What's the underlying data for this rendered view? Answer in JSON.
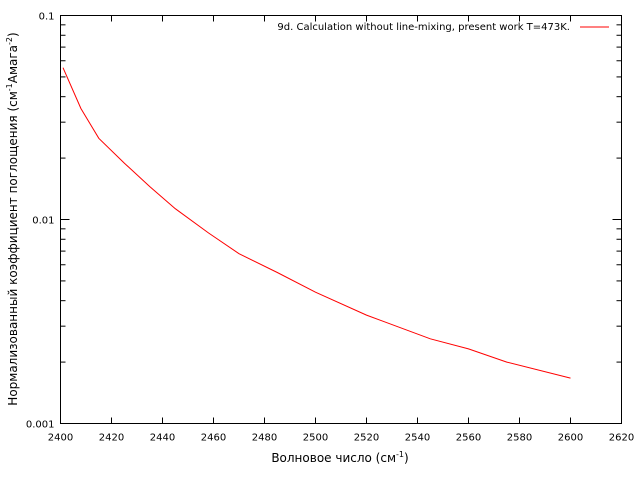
{
  "chart_data": {
    "type": "line",
    "title": "",
    "xlabel": "Волновое число (см",
    "xlabel_sup": "-1",
    "xlabel_tail": ")",
    "ylabel": "Нормализованный коэффициент поглощения (см",
    "ylabel_sup1": "-1",
    "ylabel_mid": "Амага",
    "ylabel_sup2": "-2",
    "ylabel_tail": ")",
    "xlim": [
      2400,
      2620
    ],
    "ylim": [
      0.001,
      0.1
    ],
    "yscale": "log",
    "xticks": [
      2400,
      2420,
      2440,
      2460,
      2480,
      2500,
      2520,
      2540,
      2560,
      2580,
      2600,
      2620
    ],
    "xtick_labels": [
      "2400",
      "2420",
      "2440",
      "2460",
      "2480",
      "2500",
      "2520",
      "2540",
      "2560",
      "2580",
      "2600",
      "2620"
    ],
    "yticks": [
      0.001,
      0.01,
      0.1
    ],
    "ytick_labels": [
      "0.001",
      "0.01",
      "0.1"
    ],
    "grid": false,
    "legend_position": "top-right",
    "series": [
      {
        "name": "9d. Calculation without line-mixing, present work T=473K.",
        "color": "#ff0000",
        "x": [
          2401,
          2408,
          2415,
          2425,
          2435,
          2445,
          2458,
          2470,
          2485,
          2500,
          2520,
          2545,
          2560,
          2575,
          2600
        ],
        "y": [
          0.0555,
          0.035,
          0.025,
          0.0189,
          0.0145,
          0.0113,
          0.0086,
          0.0068,
          0.0055,
          0.0044,
          0.0034,
          0.0026,
          0.00232,
          0.002,
          0.00167
        ]
      }
    ]
  }
}
